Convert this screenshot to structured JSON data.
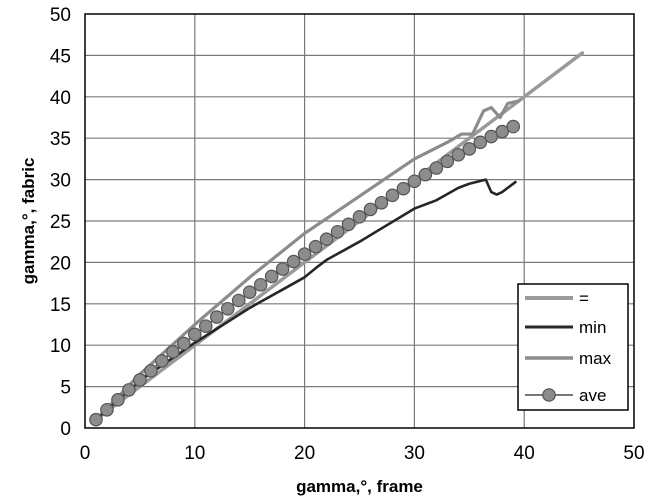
{
  "chart_data": {
    "type": "line",
    "title": "",
    "xlabel": "gamma,°, frame",
    "ylabel": "gamma,°, fabric",
    "xlim": [
      0,
      50
    ],
    "ylim": [
      0,
      50
    ],
    "x_ticks": [
      "0",
      "10",
      "20",
      "30",
      "40",
      "50"
    ],
    "y_ticks": [
      "0",
      "5",
      "10",
      "15",
      "20",
      "25",
      "30",
      "35",
      "40",
      "45",
      "50"
    ],
    "grid": true,
    "legend_position": "bottom-right",
    "series": [
      {
        "name": "=",
        "color": "#9a9a9a",
        "x": [
          1,
          45.3
        ],
        "y": [
          1,
          45.3
        ]
      },
      {
        "name": "min",
        "color": "#262626",
        "x": [
          1,
          5,
          10,
          15,
          20,
          21,
          22,
          25,
          30,
          32,
          34,
          35,
          36.5,
          37,
          37.5,
          38,
          39.2
        ],
        "y": [
          1,
          5.7,
          10.3,
          14.5,
          18.2,
          19.3,
          20.3,
          22.5,
          26.5,
          27.5,
          29,
          29.5,
          30,
          28.5,
          28.2,
          28.5,
          29.7
        ]
      },
      {
        "name": "max",
        "color": "#8c8c8c",
        "x": [
          1,
          5,
          10,
          15,
          20,
          25,
          30,
          33,
          34.3,
          35.3,
          36.3,
          37,
          37.8,
          38.5,
          39.5
        ],
        "y": [
          1,
          6.5,
          12.5,
          18.2,
          23.5,
          28,
          32.5,
          34.5,
          35.5,
          35.5,
          38.3,
          38.7,
          37.5,
          39.2,
          39.5
        ]
      },
      {
        "name": "ave",
        "color": "#4a4a4a",
        "marker_color": "#8c8c8c",
        "x": [
          1,
          2,
          3,
          4,
          5,
          6,
          7,
          8,
          9,
          10,
          11,
          12,
          13,
          14,
          15,
          16,
          17,
          18,
          19,
          20,
          21,
          22,
          23,
          24,
          25,
          26,
          27,
          28,
          29,
          30,
          31,
          32,
          33,
          34,
          35,
          36,
          37,
          38,
          39
        ],
        "y": [
          1,
          2.2,
          3.4,
          4.6,
          5.8,
          6.9,
          8.1,
          9.2,
          10.2,
          11.3,
          12.3,
          13.4,
          14.4,
          15.4,
          16.4,
          17.3,
          18.3,
          19.2,
          20.1,
          21.0,
          21.9,
          22.8,
          23.7,
          24.6,
          25.5,
          26.4,
          27.2,
          28.1,
          28.9,
          29.8,
          30.6,
          31.4,
          32.2,
          33.0,
          33.7,
          34.5,
          35.2,
          35.8,
          36.4
        ]
      }
    ]
  }
}
